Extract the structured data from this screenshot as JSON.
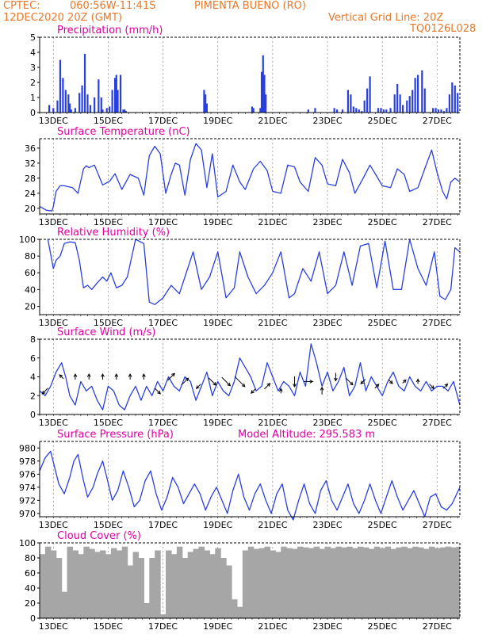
{
  "header": {
    "source": "CPTEC:",
    "coords": "060:56W-11:41S",
    "station": "PIMENTA BUENO (RO)",
    "date": "12DEC2020 20Z (GMT)",
    "grid_line": "Vertical Grid Line: 20Z",
    "code": "TQ0126L028"
  },
  "colors": {
    "header": "#e8782a",
    "title": "#e000a0",
    "line": "#2a3fe0",
    "bar": "#2a3fe0",
    "cloud": "#a6a6a6",
    "arrow": "#000000"
  },
  "chart_data": [
    {
      "type": "bar",
      "title": "Precipitation (mm/h)",
      "ylim": [
        0,
        5
      ],
      "yticks": [
        "0",
        "1",
        "2",
        "3",
        "4",
        "5"
      ],
      "xticks": [
        "13DEC",
        "15DEC",
        "17DEC",
        "19DEC",
        "21DEC",
        "23DEC",
        "25DEC",
        "27DEC"
      ],
      "x_unit": "days since 12DEC2020 20Z",
      "x": [
        0.35,
        0.5,
        0.65,
        0.75,
        0.85,
        0.95,
        1.05,
        1.1,
        1.15,
        1.3,
        1.45,
        1.55,
        1.65,
        1.75,
        1.85,
        2.0,
        2.15,
        2.25,
        2.3,
        2.45,
        2.55,
        2.65,
        2.75,
        2.8,
        2.85,
        2.95,
        3.05,
        3.1,
        3.15,
        6.0,
        6.05,
        6.1,
        7.75,
        7.8,
        8.05,
        8.1,
        8.15,
        8.2,
        8.25,
        9.8,
        10.05,
        10.75,
        10.85,
        11.05,
        11.25,
        11.35,
        11.45,
        11.55,
        11.65,
        11.75,
        11.85,
        11.95,
        12.05,
        12.35,
        12.45,
        12.55,
        12.65,
        12.8,
        12.95,
        13.05,
        13.15,
        13.25,
        13.4,
        13.5,
        13.6,
        13.7,
        13.8,
        13.95,
        14.05,
        14.35,
        14.45,
        14.55,
        14.65,
        14.75,
        14.85,
        14.95,
        15.05,
        15.15,
        15.25
      ],
      "values": [
        0.5,
        0.3,
        0.8,
        3.5,
        2.3,
        1.5,
        1.2,
        0.6,
        0.2,
        0.3,
        1.3,
        1.8,
        3.9,
        1.2,
        0.5,
        1.0,
        2.2,
        1.0,
        0.2,
        0.3,
        0.4,
        1.5,
        2.3,
        2.5,
        1.5,
        2.5,
        0.2,
        0.2,
        0.1,
        1.5,
        1.2,
        0.6,
        0.4,
        0.3,
        0.3,
        2.7,
        3.8,
        2.5,
        1.2,
        0.2,
        0.3,
        0.3,
        0.2,
        0.2,
        1.5,
        1.2,
        0.4,
        0.3,
        0.2,
        0.1,
        0.8,
        1.6,
        2.4,
        0.3,
        0.3,
        0.2,
        0.2,
        0.3,
        1.2,
        1.9,
        1.2,
        0.5,
        0.8,
        1.1,
        1.5,
        2.3,
        2.5,
        2.8,
        1.6,
        0.3,
        0.3,
        0.2,
        0.2,
        0.1,
        0.3,
        1.2,
        2.0,
        1.8,
        1.3
      ]
    },
    {
      "type": "line",
      "title": "Surface Temperature (nC)",
      "ylim": [
        18.5,
        38.5
      ],
      "yticks": [
        "20",
        "24",
        "28",
        "32",
        "36"
      ],
      "ytick_values": [
        20,
        24,
        28,
        32,
        36
      ],
      "xticks": [
        "13DEC",
        "15DEC",
        "17DEC",
        "19DEC",
        "21DEC",
        "23DEC",
        "25DEC",
        "27DEC"
      ],
      "x": [
        0,
        0.25,
        0.45,
        0.5,
        0.6,
        0.75,
        0.9,
        1.0,
        1.2,
        1.4,
        1.6,
        1.7,
        1.8,
        2.0,
        2.3,
        2.55,
        2.75,
        3.0,
        3.3,
        3.6,
        3.8,
        4.0,
        4.2,
        4.4,
        4.6,
        4.8,
        4.95,
        5.1,
        5.3,
        5.5,
        5.7,
        5.9,
        6.1,
        6.3,
        6.5,
        6.8,
        7.05,
        7.3,
        7.5,
        7.8,
        8.05,
        8.3,
        8.5,
        8.8,
        9.05,
        9.3,
        9.5,
        9.8,
        10.05,
        10.3,
        10.5,
        10.8,
        11.05,
        11.3,
        11.5,
        11.8,
        12.05,
        12.3,
        12.5,
        12.8,
        13.05,
        13.3,
        13.5,
        13.8,
        14.05,
        14.3,
        14.5,
        14.7,
        14.85,
        15.0,
        15.15,
        15.33
      ],
      "values": [
        20.5,
        19.5,
        19.3,
        20.5,
        24.5,
        26.0,
        26.0,
        25.8,
        25.5,
        24.0,
        30.5,
        31.3,
        30.8,
        31.5,
        26.2,
        27.2,
        29.2,
        25.0,
        29.0,
        28.0,
        23.5,
        34.0,
        36.5,
        34.5,
        24.0,
        29.0,
        32.0,
        31.5,
        23.5,
        33.0,
        37.2,
        35.5,
        25.5,
        34.5,
        23.0,
        24.5,
        31.5,
        27.0,
        25.0,
        30.5,
        32.5,
        30.0,
        24.5,
        24.0,
        31.5,
        31.0,
        27.0,
        24.5,
        33.5,
        31.5,
        26.5,
        26.0,
        33.0,
        29.5,
        24.0,
        28.0,
        31.5,
        28.5,
        26.0,
        25.5,
        30.5,
        29.0,
        24.5,
        25.5,
        30.5,
        35.5,
        29.5,
        24.5,
        22.5,
        27.0,
        28.0,
        27.0
      ]
    },
    {
      "type": "line",
      "title": "Relative Humidity (%)",
      "ylim": [
        10,
        100
      ],
      "yticks": [
        "20",
        "40",
        "60",
        "80",
        "100"
      ],
      "ytick_values": [
        20,
        40,
        60,
        80,
        100
      ],
      "xticks": [
        "13DEC",
        "15DEC",
        "17DEC",
        "19DEC",
        "21DEC",
        "23DEC",
        "25DEC",
        "27DEC"
      ],
      "x": [
        0.3,
        0.5,
        0.6,
        0.75,
        0.9,
        1.1,
        1.3,
        1.45,
        1.6,
        1.75,
        1.9,
        2.1,
        2.3,
        2.45,
        2.6,
        2.8,
        3.0,
        3.2,
        3.5,
        3.8,
        4.0,
        4.2,
        4.5,
        4.8,
        5.1,
        5.3,
        5.6,
        5.9,
        6.2,
        6.5,
        6.8,
        7.1,
        7.3,
        7.6,
        7.9,
        8.2,
        8.5,
        8.8,
        9.1,
        9.3,
        9.6,
        9.9,
        10.2,
        10.5,
        10.8,
        11.1,
        11.4,
        11.7,
        12.0,
        12.3,
        12.6,
        12.9,
        13.2,
        13.5,
        13.8,
        14.1,
        14.4,
        14.6,
        14.8,
        15.0,
        15.15,
        15.33
      ],
      "values": [
        100,
        65,
        75,
        80,
        95,
        97,
        96,
        75,
        42,
        45,
        40,
        48,
        55,
        50,
        60,
        42,
        45,
        55,
        100,
        95,
        25,
        22,
        30,
        45,
        35,
        55,
        85,
        40,
        55,
        85,
        30,
        42,
        85,
        55,
        35,
        45,
        60,
        85,
        30,
        35,
        65,
        50,
        85,
        35,
        45,
        85,
        45,
        92,
        95,
        42,
        98,
        40,
        40,
        100,
        65,
        45,
        85,
        32,
        28,
        40,
        90,
        85
      ]
    },
    {
      "type": "line",
      "title": "Surface Wind (m/s)",
      "ylim": [
        0,
        8
      ],
      "yticks": [
        "0",
        "2",
        "4",
        "6",
        "8"
      ],
      "ytick_values": [
        0,
        2,
        4,
        6,
        8
      ],
      "xticks": [
        "13DEC",
        "15DEC",
        "17DEC",
        "19DEC",
        "21DEC",
        "23DEC",
        "25DEC",
        "27DEC"
      ],
      "x": [
        0,
        0.2,
        0.4,
        0.6,
        0.8,
        0.95,
        1.1,
        1.3,
        1.5,
        1.7,
        1.9,
        2.1,
        2.3,
        2.5,
        2.7,
        2.9,
        3.1,
        3.3,
        3.5,
        3.7,
        3.9,
        4.1,
        4.3,
        4.5,
        4.7,
        4.9,
        5.1,
        5.3,
        5.5,
        5.7,
        5.9,
        6.1,
        6.3,
        6.5,
        6.7,
        6.9,
        7.1,
        7.3,
        7.5,
        7.7,
        7.9,
        8.1,
        8.3,
        8.5,
        8.7,
        8.9,
        9.1,
        9.3,
        9.5,
        9.7,
        9.9,
        10.1,
        10.3,
        10.5,
        10.7,
        10.9,
        11.1,
        11.3,
        11.5,
        11.7,
        11.9,
        12.1,
        12.3,
        12.5,
        12.7,
        12.9,
        13.1,
        13.3,
        13.5,
        13.7,
        13.9,
        14.1,
        14.3,
        14.5,
        14.7,
        14.9,
        15.1,
        15.33
      ],
      "values": [
        2.5,
        2.0,
        3.0,
        4.5,
        5.5,
        4.0,
        2.0,
        1.0,
        3.5,
        2.5,
        3.0,
        1.5,
        0.5,
        3.0,
        2.5,
        1.0,
        0.5,
        2.0,
        3.0,
        1.5,
        3.0,
        2.0,
        3.5,
        2.5,
        4.0,
        3.0,
        2.5,
        4.0,
        3.5,
        1.5,
        3.0,
        4.5,
        2.0,
        3.5,
        2.5,
        2.0,
        3.5,
        6.0,
        5.0,
        4.0,
        2.5,
        3.0,
        5.5,
        4.0,
        2.5,
        3.5,
        3.0,
        2.0,
        4.5,
        3.0,
        7.5,
        5.5,
        3.0,
        4.5,
        2.5,
        3.5,
        5.0,
        2.0,
        3.0,
        5.5,
        2.5,
        4.0,
        3.0,
        2.0,
        3.5,
        4.5,
        3.0,
        2.5,
        4.0,
        3.0,
        2.5,
        3.5,
        2.5,
        3.0,
        3.0,
        2.5,
        3.5,
        1.0
      ]
    },
    {
      "type": "line",
      "title": "Surface Pressure (hPa)",
      "annotation": "Model Altitude: 295.583 m",
      "ylim": [
        969.5,
        981
      ],
      "yticks": [
        "970",
        "972",
        "974",
        "976",
        "978",
        "980"
      ],
      "ytick_values": [
        970,
        972,
        974,
        976,
        978,
        980
      ],
      "xticks": [
        "13DEC",
        "15DEC",
        "17DEC",
        "19DEC",
        "21DEC",
        "23DEC",
        "25DEC",
        "27DEC"
      ],
      "x": [
        0,
        0.2,
        0.4,
        0.55,
        0.7,
        0.9,
        1.1,
        1.25,
        1.4,
        1.6,
        1.75,
        1.95,
        2.1,
        2.3,
        2.45,
        2.65,
        2.85,
        3.05,
        3.25,
        3.45,
        3.65,
        3.85,
        4.05,
        4.25,
        4.45,
        4.65,
        4.85,
        5.05,
        5.25,
        5.45,
        5.65,
        5.85,
        6.05,
        6.25,
        6.45,
        6.65,
        6.85,
        7.05,
        7.25,
        7.45,
        7.65,
        7.85,
        8.05,
        8.25,
        8.45,
        8.65,
        8.85,
        9.05,
        9.25,
        9.45,
        9.65,
        9.85,
        10.05,
        10.25,
        10.45,
        10.65,
        10.85,
        11.05,
        11.25,
        11.45,
        11.65,
        11.85,
        12.05,
        12.25,
        12.45,
        12.65,
        12.85,
        13.05,
        13.25,
        13.45,
        13.65,
        13.85,
        14.05,
        14.25,
        14.45,
        14.65,
        14.85,
        15.05,
        15.33
      ],
      "values": [
        976.5,
        978.5,
        979.5,
        977.0,
        974.5,
        973.0,
        975.5,
        978.0,
        979.0,
        975.0,
        972.5,
        974.0,
        976.0,
        978.0,
        975.5,
        972.0,
        973.5,
        976.5,
        974.0,
        971.0,
        972.0,
        975.0,
        976.5,
        973.0,
        970.5,
        972.5,
        975.5,
        974.0,
        971.5,
        973.0,
        974.5,
        973.0,
        970.5,
        972.5,
        974.0,
        972.0,
        970.0,
        973.5,
        976.0,
        972.5,
        970.5,
        973.0,
        974.5,
        972.0,
        970.0,
        973.0,
        974.5,
        970.5,
        969.0,
        972.0,
        974.5,
        971.5,
        970.0,
        973.5,
        975.0,
        972.0,
        970.5,
        972.5,
        974.5,
        971.5,
        970.0,
        972.0,
        974.5,
        972.0,
        970.0,
        972.5,
        975.0,
        972.5,
        970.5,
        972.0,
        973.5,
        971.5,
        969.5,
        972.5,
        973.0,
        971.0,
        970.5,
        971.5,
        974.0
      ]
    },
    {
      "type": "bar",
      "title": "Cloud Cover (%)",
      "ylim": [
        0,
        100
      ],
      "yticks": [
        "0",
        "20",
        "40",
        "60",
        "80",
        "100"
      ],
      "xticks": [
        "13DEC",
        "15DEC",
        "17DEC",
        "19DEC",
        "21DEC",
        "23DEC",
        "25DEC",
        "27DEC"
      ],
      "x": [
        0,
        0.2,
        0.4,
        0.6,
        0.8,
        1.0,
        1.2,
        1.4,
        1.6,
        1.8,
        2.0,
        2.2,
        2.4,
        2.6,
        2.8,
        3.0,
        3.2,
        3.4,
        3.6,
        3.8,
        4.0,
        4.2,
        4.4,
        4.6,
        4.8,
        5.0,
        5.2,
        5.4,
        5.6,
        5.8,
        6.0,
        6.2,
        6.4,
        6.6,
        6.8,
        7.0,
        7.2,
        7.4,
        7.6,
        7.8,
        8.0,
        8.2,
        8.4,
        8.6,
        8.8,
        9.0,
        9.2,
        9.4,
        9.6,
        9.8,
        10.0,
        10.2,
        10.4,
        10.6,
        10.8,
        11.0,
        11.2,
        11.4,
        11.6,
        11.8,
        12.0,
        12.2,
        12.4,
        12.6,
        12.8,
        13.0,
        13.2,
        13.4,
        13.6,
        13.8,
        14.0,
        14.2,
        14.4,
        14.6,
        14.8,
        15.0,
        15.2
      ],
      "values": [
        85,
        95,
        90,
        80,
        35,
        95,
        90,
        85,
        95,
        92,
        88,
        90,
        85,
        93,
        90,
        95,
        70,
        88,
        80,
        20,
        80,
        90,
        5,
        90,
        85,
        95,
        80,
        88,
        92,
        95,
        90,
        85,
        93,
        80,
        70,
        25,
        15,
        90,
        95,
        92,
        93,
        95,
        90,
        88,
        95,
        93,
        92,
        95,
        94,
        93,
        95,
        92,
        95,
        93,
        95,
        94,
        95,
        93,
        95,
        94,
        92,
        95,
        93,
        95,
        92,
        94,
        95,
        93,
        95,
        94,
        92,
        95,
        93,
        94,
        95,
        94,
        95
      ]
    }
  ],
  "wind_arrows": {
    "x": [
      0.2,
      0.8,
      1.3,
      1.8,
      2.3,
      2.8,
      3.3,
      3.8,
      4.3,
      4.8,
      5.3,
      5.8,
      6.3,
      6.8,
      7.3,
      7.8,
      8.3,
      8.8,
      9.3,
      9.8,
      10.3,
      10.8,
      11.3,
      11.8,
      12.3,
      12.8,
      13.3,
      13.8,
      14.3,
      14.8
    ],
    "speed": [
      2.5,
      4.0,
      4.0,
      4.0,
      4.0,
      4.0,
      4.0,
      4.0,
      2.5,
      4.0,
      3.5,
      3.0,
      3.5,
      3.5,
      3.5,
      2.5,
      3.0,
      2.5,
      3.5,
      3.5,
      2.5,
      4.0,
      3.5,
      3.5,
      3.0,
      3.5,
      3.5,
      3.5,
      3.0,
      3.0
    ],
    "dir": [
      225,
      315,
      0,
      0,
      0,
      0,
      0,
      0,
      135,
      45,
      45,
      225,
      135,
      135,
      135,
      225,
      45,
      0,
      180,
      90,
      0,
      180,
      135,
      225,
      45,
      135,
      45,
      0,
      135,
      45
    ],
    "len": [
      1.0,
      0.7,
      0.7,
      0.7,
      0.7,
      0.7,
      0.7,
      0.7,
      1.0,
      1.2,
      1.2,
      0.8,
      1.3,
      1.5,
      1.8,
      0.8,
      1.0,
      0.6,
      1.3,
      1.1,
      0.9,
      1.0,
      1.2,
      0.8,
      0.7,
      0.7,
      0.6,
      0.6,
      0.8,
      0.8
    ]
  }
}
